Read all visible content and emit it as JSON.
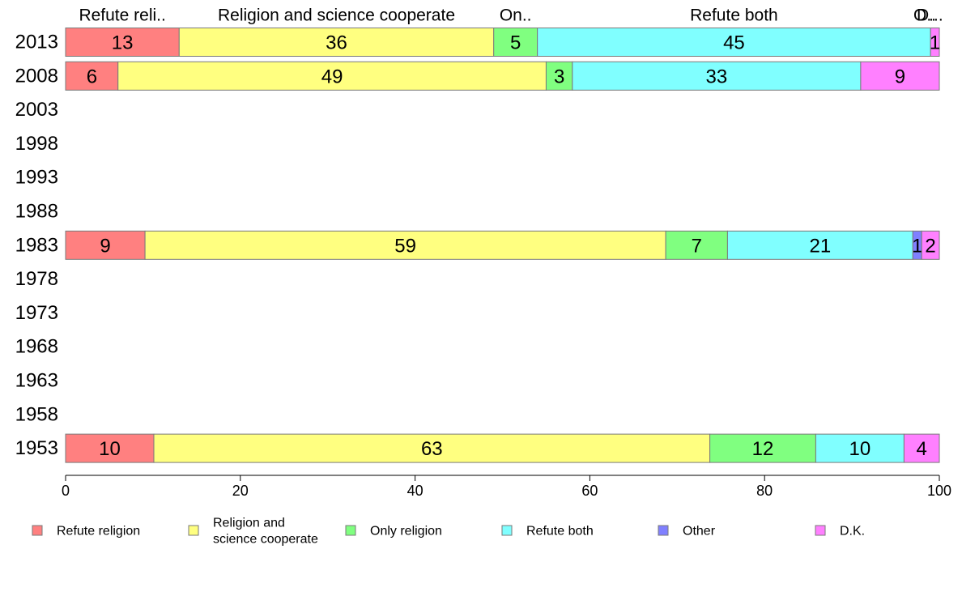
{
  "chart_data": {
    "type": "bar",
    "orientation": "horizontal",
    "stacked": true,
    "categories": [
      "2013",
      "2008",
      "2003",
      "1998",
      "1993",
      "1988",
      "1983",
      "1978",
      "1973",
      "1968",
      "1963",
      "1958",
      "1953"
    ],
    "series": [
      {
        "name": "Refute religion",
        "color": "#ff8080",
        "values": [
          13,
          6,
          null,
          null,
          null,
          null,
          9,
          null,
          null,
          null,
          null,
          null,
          10
        ]
      },
      {
        "name": "Religion and science cooperate",
        "color": "#ffff80",
        "values": [
          36,
          49,
          null,
          null,
          null,
          null,
          59,
          null,
          null,
          null,
          null,
          null,
          63
        ]
      },
      {
        "name": "Only religion",
        "color": "#80ff80",
        "values": [
          5,
          3,
          null,
          null,
          null,
          null,
          7,
          null,
          null,
          null,
          null,
          null,
          12
        ]
      },
      {
        "name": "Refute both",
        "color": "#80ffff",
        "values": [
          45,
          33,
          null,
          null,
          null,
          null,
          21,
          null,
          null,
          null,
          null,
          null,
          10
        ]
      },
      {
        "name": "Other",
        "color": "#8080ff",
        "values": [
          0,
          0,
          null,
          null,
          null,
          null,
          1,
          null,
          null,
          null,
          null,
          null,
          0
        ]
      },
      {
        "name": "D.K.",
        "color": "#ff80ff",
        "values": [
          1,
          9,
          null,
          null,
          null,
          null,
          2,
          null,
          null,
          null,
          null,
          null,
          4
        ]
      }
    ],
    "top_labels": [
      "Refute reli..",
      "Religion and science cooperate",
      "On..",
      "Refute both",
      "O..",
      "D..."
    ],
    "legend": [
      {
        "label_lines": [
          "Refute religion"
        ],
        "color": "#ff8080"
      },
      {
        "label_lines": [
          "Religion and",
          "science cooperate"
        ],
        "color": "#ffff80"
      },
      {
        "label_lines": [
          "Only religion"
        ],
        "color": "#80ff80"
      },
      {
        "label_lines": [
          "Refute both"
        ],
        "color": "#80ffff"
      },
      {
        "label_lines": [
          "Other"
        ],
        "color": "#8080ff"
      },
      {
        "label_lines": [
          "D.K."
        ],
        "color": "#ff80ff"
      }
    ],
    "legend_position": "bottom",
    "xlim": [
      0,
      100
    ],
    "xticks": [
      "0",
      "20",
      "40",
      "60",
      "80",
      "100"
    ],
    "grid": false,
    "title": "",
    "xlabel": "",
    "ylabel": ""
  }
}
